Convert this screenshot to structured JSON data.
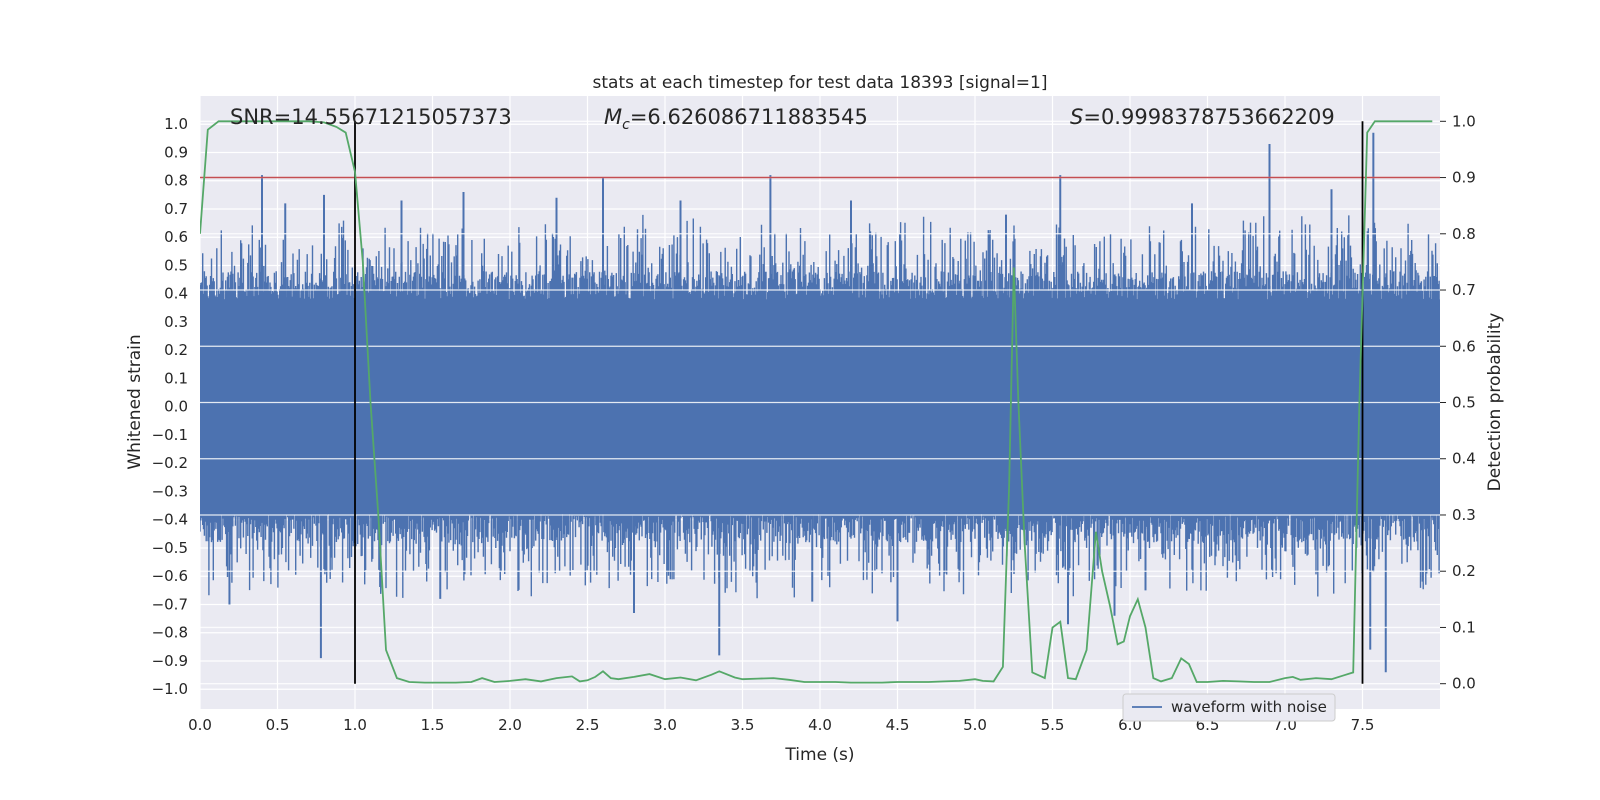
{
  "chart_data": {
    "type": "line",
    "title": "stats at each timestep for test data 18393 [signal=1]",
    "xlabel": "Time (s)",
    "ylabel_left": "Whitened strain",
    "ylabel_right": "Detection probability",
    "xlim": [
      0,
      8
    ],
    "ylim_left": [
      -1.07,
      1.1
    ],
    "ylim_right": [
      -0.045,
      1.045
    ],
    "x_ticks": [
      "0.0",
      "0.5",
      "1.0",
      "1.5",
      "2.0",
      "2.5",
      "3.0",
      "3.5",
      "4.0",
      "4.5",
      "5.0",
      "5.5",
      "6.0",
      "6.5",
      "7.0",
      "7.5"
    ],
    "x_tick_values": [
      0,
      0.5,
      1,
      1.5,
      2,
      2.5,
      3,
      3.5,
      4,
      4.5,
      5,
      5.5,
      6,
      6.5,
      7,
      7.5
    ],
    "y_left_ticks": [
      "1.0",
      "0.9",
      "0.8",
      "0.7",
      "0.6",
      "0.5",
      "0.4",
      "0.3",
      "0.2",
      "0.1",
      "0.0",
      "−0.1",
      "−0.2",
      "−0.3",
      "−0.4",
      "−0.5",
      "−0.6",
      "−0.7",
      "−0.8",
      "−0.9",
      "−1.0"
    ],
    "y_left_tick_values": [
      1.0,
      0.9,
      0.8,
      0.7,
      0.6,
      0.5,
      0.4,
      0.3,
      0.2,
      0.1,
      0.0,
      -0.1,
      -0.2,
      -0.3,
      -0.4,
      -0.5,
      -0.6,
      -0.7,
      -0.8,
      -0.9,
      -1.0
    ],
    "y_right_ticks": [
      "1.0",
      "0.9",
      "0.8",
      "0.7",
      "0.6",
      "0.5",
      "0.4",
      "0.3",
      "0.2",
      "0.1",
      "0.0"
    ],
    "y_right_tick_values": [
      1.0,
      0.9,
      0.8,
      0.7,
      0.6,
      0.5,
      0.4,
      0.3,
      0.2,
      0.1,
      0.0
    ],
    "annotations": {
      "snr": "SNR=14.55671215057373",
      "mc_symbol": "M",
      "mc_sub": "c",
      "mc_value": "=6.626086711883545",
      "s_symbol": "S",
      "s_value": "=0.9998378753662209"
    },
    "threshold": {
      "axis": "right",
      "value": 0.9,
      "color": "#c44e52"
    },
    "vertical_lines": [
      1.0,
      7.5
    ],
    "series": [
      {
        "name": "waveform with noise",
        "axis": "left",
        "color": "#4c72b0",
        "style": "noise",
        "duration": 8.0,
        "core_amplitude": 0.38,
        "spike_amplitude_max": 1.0,
        "spikes_pos": [
          [
            0.4,
            0.82
          ],
          [
            0.8,
            0.75
          ],
          [
            1.7,
            0.76
          ],
          [
            2.6,
            0.81
          ],
          [
            3.68,
            0.82
          ],
          [
            5.55,
            0.82
          ],
          [
            6.9,
            0.93
          ],
          [
            7.57,
            0.97
          ],
          [
            0.55,
            0.72
          ],
          [
            1.3,
            0.73
          ],
          [
            2.3,
            0.74
          ],
          [
            3.1,
            0.73
          ],
          [
            4.2,
            0.73
          ],
          [
            5.2,
            0.68
          ],
          [
            6.4,
            0.72
          ],
          [
            7.3,
            0.77
          ]
        ],
        "spikes_neg": [
          [
            0.19,
            -0.7
          ],
          [
            0.78,
            -0.89
          ],
          [
            3.35,
            -0.88
          ],
          [
            4.5,
            -0.76
          ],
          [
            5.6,
            -0.77
          ],
          [
            7.55,
            -0.86
          ],
          [
            7.65,
            -0.94
          ],
          [
            2.8,
            -0.73
          ],
          [
            3.95,
            -0.69
          ],
          [
            6.1,
            -0.65
          ],
          [
            1.55,
            -0.68
          ],
          [
            5.9,
            -0.74
          ]
        ]
      },
      {
        "name": "",
        "axis": "right",
        "color": "#55a868",
        "style": "line",
        "x": [
          0,
          0.05,
          0.12,
          0.2,
          0.3,
          0.5,
          0.7,
          0.8,
          0.88,
          0.94,
          1.0,
          1.05,
          1.1,
          1.15,
          1.2,
          1.27,
          1.35,
          1.45,
          1.55,
          1.65,
          1.75,
          1.82,
          1.9,
          2.0,
          2.1,
          2.2,
          2.3,
          2.4,
          2.45,
          2.5,
          2.55,
          2.6,
          2.65,
          2.7,
          2.8,
          2.9,
          3.0,
          3.1,
          3.2,
          3.3,
          3.35,
          3.45,
          3.5,
          3.6,
          3.7,
          3.8,
          3.9,
          4.0,
          4.1,
          4.2,
          4.3,
          4.4,
          4.5,
          4.6,
          4.7,
          4.8,
          4.9,
          5.0,
          5.05,
          5.12,
          5.18,
          5.22,
          5.25,
          5.28,
          5.32,
          5.37,
          5.45,
          5.5,
          5.55,
          5.6,
          5.65,
          5.72,
          5.78,
          5.82,
          5.87,
          5.92,
          5.96,
          6.0,
          6.05,
          6.1,
          6.15,
          6.2,
          6.27,
          6.33,
          6.38,
          6.43,
          6.5,
          6.6,
          6.7,
          6.8,
          6.9,
          7.0,
          7.05,
          7.1,
          7.2,
          7.3,
          7.38,
          7.44,
          7.48,
          7.53,
          7.58,
          7.65,
          7.8,
          7.95
        ],
        "y": [
          0.8,
          0.985,
          1.0,
          1.0,
          1.0,
          1.0,
          1.0,
          0.998,
          0.99,
          0.98,
          0.91,
          0.75,
          0.5,
          0.3,
          0.06,
          0.01,
          0.003,
          0.002,
          0.002,
          0.002,
          0.003,
          0.01,
          0.003,
          0.005,
          0.008,
          0.004,
          0.01,
          0.013,
          0.004,
          0.006,
          0.012,
          0.022,
          0.01,
          0.008,
          0.012,
          0.017,
          0.008,
          0.011,
          0.006,
          0.016,
          0.022,
          0.011,
          0.008,
          0.009,
          0.01,
          0.007,
          0.003,
          0.003,
          0.003,
          0.002,
          0.002,
          0.002,
          0.003,
          0.003,
          0.003,
          0.004,
          0.005,
          0.008,
          0.005,
          0.004,
          0.03,
          0.35,
          0.74,
          0.5,
          0.25,
          0.02,
          0.01,
          0.1,
          0.11,
          0.01,
          0.008,
          0.06,
          0.27,
          0.2,
          0.14,
          0.07,
          0.075,
          0.12,
          0.15,
          0.1,
          0.01,
          0.004,
          0.01,
          0.045,
          0.035,
          0.003,
          0.003,
          0.005,
          0.004,
          0.003,
          0.003,
          0.01,
          0.012,
          0.007,
          0.01,
          0.008,
          0.015,
          0.02,
          0.5,
          0.98,
          1.0,
          1.0,
          1.0,
          1.0
        ]
      }
    ],
    "legend": {
      "placement": "lower-right",
      "entries": [
        "waveform with noise"
      ]
    }
  }
}
